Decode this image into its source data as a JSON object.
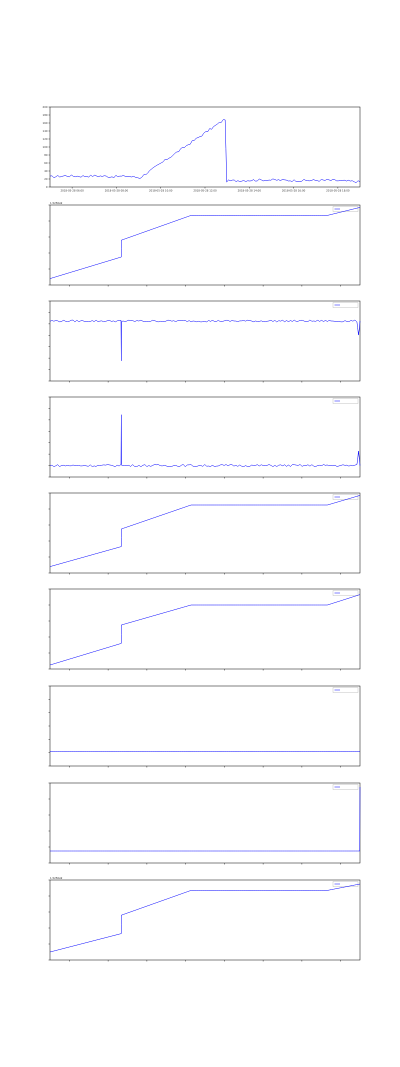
{
  "figure": {
    "background": "#ffffff",
    "line_color": "#0000ff"
  },
  "chart_data": [
    {
      "type": "line",
      "ylim": [
        0,
        200
      ],
      "offset": "",
      "yticks": [
        "0",
        "20",
        "40",
        "60",
        "80",
        "100",
        "120",
        "140",
        "160",
        "180",
        "200"
      ],
      "xticks": [
        "2018-05-28 06:00",
        "2018-05-28 08:00",
        "2018-05-28 10:00",
        "2018-05-28 12:00",
        "2018-05-28 14:00",
        "2018-05-28 16:00",
        "2018-05-28 18:00"
      ],
      "legend": "",
      "series": [
        {
          "name": "",
          "x": [
            0,
            0.05,
            0.1,
            0.15,
            0.2,
            0.25,
            0.29,
            0.565,
            0.57,
            0.6,
            0.7,
            0.8,
            0.9,
            1.0
          ],
          "y": [
            25,
            28,
            27,
            28,
            26,
            27,
            23,
            170,
            15,
            16,
            18,
            16,
            17,
            13
          ],
          "noise": 3
        }
      ]
    },
    {
      "type": "line",
      "ylim": [
        0,
        1
      ],
      "offset": "1.5256e9",
      "yticks": [
        "",
        "",
        "",
        "",
        "",
        ""
      ],
      "xticks": [
        "",
        "",
        "",
        "",
        "",
        "",
        "",
        ""
      ],
      "legend": "",
      "series": [
        {
          "name": "",
          "x": [
            0,
            0.23,
            0.23,
            0.455,
            0.895,
            1.0
          ],
          "y": [
            0.08,
            0.35,
            0.56,
            0.87,
            0.87,
            0.97
          ],
          "noise": 0
        }
      ]
    },
    {
      "type": "line",
      "ylim": [
        -1.2,
        0.4
      ],
      "offset": "",
      "yticks": [
        "",
        "",
        "",
        "",
        "",
        "",
        "",
        ""
      ],
      "xticks": [
        "",
        "",
        "",
        "",
        "",
        "",
        "",
        ""
      ],
      "legend": "",
      "series": [
        {
          "name": "",
          "x": [
            0,
            0.229,
            0.23,
            0.231,
            0.24,
            0.28,
            0.3,
            0.455,
            0.895,
            0.9,
            0.99,
            0.995,
            1.0
          ],
          "y": [
            0,
            0,
            -0.8,
            0,
            0,
            0,
            0,
            0,
            0,
            0,
            0,
            -0.3,
            0
          ],
          "noise": 0.02
        }
      ]
    },
    {
      "type": "line",
      "ylim": [
        -0.2,
        1.2
      ],
      "offset": "",
      "yticks": [
        "",
        "",
        "",
        "",
        "",
        "",
        "",
        ""
      ],
      "xticks": [
        "",
        "",
        "",
        "",
        "",
        "",
        "",
        ""
      ],
      "legend": "",
      "series": [
        {
          "name": "",
          "x": [
            0,
            0.229,
            0.23,
            0.231,
            0.24,
            0.28,
            0.3,
            0.455,
            0.895,
            0.9,
            0.99,
            0.995,
            1.0
          ],
          "y": [
            0,
            0,
            0.9,
            0,
            0,
            0,
            0,
            0,
            0,
            0,
            0,
            0.25,
            0
          ],
          "noise": 0.02
        }
      ]
    },
    {
      "type": "line",
      "ylim": [
        0,
        1
      ],
      "offset": "",
      "yticks": [
        "",
        "",
        "",
        "",
        "",
        ""
      ],
      "xticks": [
        "",
        "",
        "",
        "",
        "",
        "",
        "",
        ""
      ],
      "legend": "",
      "series": [
        {
          "name": "",
          "x": [
            0,
            0.23,
            0.23,
            0.455,
            0.895,
            1.0
          ],
          "y": [
            0.08,
            0.33,
            0.55,
            0.85,
            0.85,
            0.97
          ],
          "noise": 0
        }
      ]
    },
    {
      "type": "line",
      "ylim": [
        0,
        1
      ],
      "offset": "",
      "yticks": [
        "",
        "",
        "",
        "",
        "",
        ""
      ],
      "xticks": [
        "",
        "",
        "",
        "",
        "",
        "",
        "",
        ""
      ],
      "legend": "",
      "series": [
        {
          "name": "",
          "x": [
            0,
            0.23,
            0.23,
            0.455,
            0.895,
            1.0
          ],
          "y": [
            0.05,
            0.32,
            0.55,
            0.8,
            0.8,
            0.93
          ],
          "noise": 0
        }
      ]
    },
    {
      "type": "line",
      "ylim": [
        0,
        1
      ],
      "offset": "",
      "yticks": [
        "",
        "",
        "",
        "",
        "",
        "",
        ""
      ],
      "xticks": [
        "",
        "",
        "",
        "",
        "",
        "",
        "",
        ""
      ],
      "legend": "",
      "series": [
        {
          "name": "",
          "x": [
            0,
            1.0
          ],
          "y": [
            0.18,
            0.18
          ],
          "noise": 0
        }
      ]
    },
    {
      "type": "line",
      "ylim": [
        0,
        1
      ],
      "offset": "",
      "yticks": [
        "",
        "",
        "",
        "",
        "",
        ""
      ],
      "xticks": [
        "",
        "",
        "",
        "",
        "",
        "",
        "",
        ""
      ],
      "legend": "",
      "series": [
        {
          "name": "",
          "x": [
            0,
            0.999,
            1.0
          ],
          "y": [
            0.15,
            0.15,
            0.95
          ],
          "noise": 0
        }
      ]
    },
    {
      "type": "line",
      "ylim": [
        0,
        1
      ],
      "offset": "1.5256e9",
      "yticks": [
        "",
        "",
        "",
        "",
        "",
        ""
      ],
      "xticks": [
        "",
        "",
        "",
        "",
        "",
        "",
        "",
        ""
      ],
      "legend": "",
      "series": [
        {
          "name": "",
          "x": [
            0,
            0.23,
            0.23,
            0.455,
            0.895,
            1.0
          ],
          "y": [
            0.1,
            0.33,
            0.56,
            0.87,
            0.87,
            0.95
          ],
          "noise": 0
        }
      ]
    }
  ]
}
